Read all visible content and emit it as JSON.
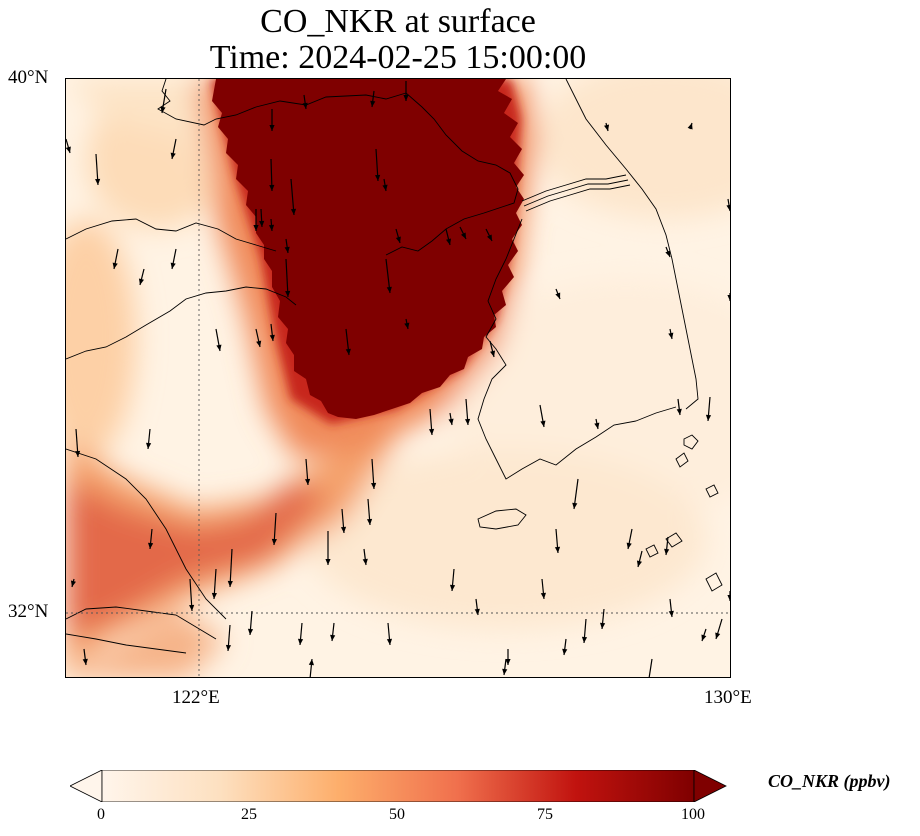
{
  "title": {
    "line1": "CO_NKR at surface",
    "line2": "Time: 2024-02-25 15:00:00"
  },
  "map": {
    "extent": {
      "lon_min": 120,
      "lon_max": 130,
      "lat_min": 31,
      "lat_max": 40
    },
    "gridlines": {
      "lat": [
        32
      ],
      "lon": [
        122
      ],
      "style": "dotted"
    },
    "lat_labels": [
      "40°N",
      "32°N"
    ],
    "lon_labels": [
      "122°E",
      "130°E"
    ],
    "variable": "CO_NKR",
    "units": "ppbv",
    "vectors": "wind arrows (predominantly northerly)",
    "plume_description_core_region": "high concentration (>=100 ppbv) over Bohai / Yellow Sea, saturated",
    "colors": {
      "low": "#fff5eb",
      "mid": "#fdae6b",
      "high": "#d7301f",
      "max": "#7f0000"
    }
  },
  "colorbar": {
    "label": "CO_NKR (ppbv)",
    "ticks": [
      "0",
      "25",
      "50",
      "75",
      "100"
    ],
    "range": [
      0,
      100
    ],
    "colormap": "OrRd-like",
    "extend": "both"
  }
}
